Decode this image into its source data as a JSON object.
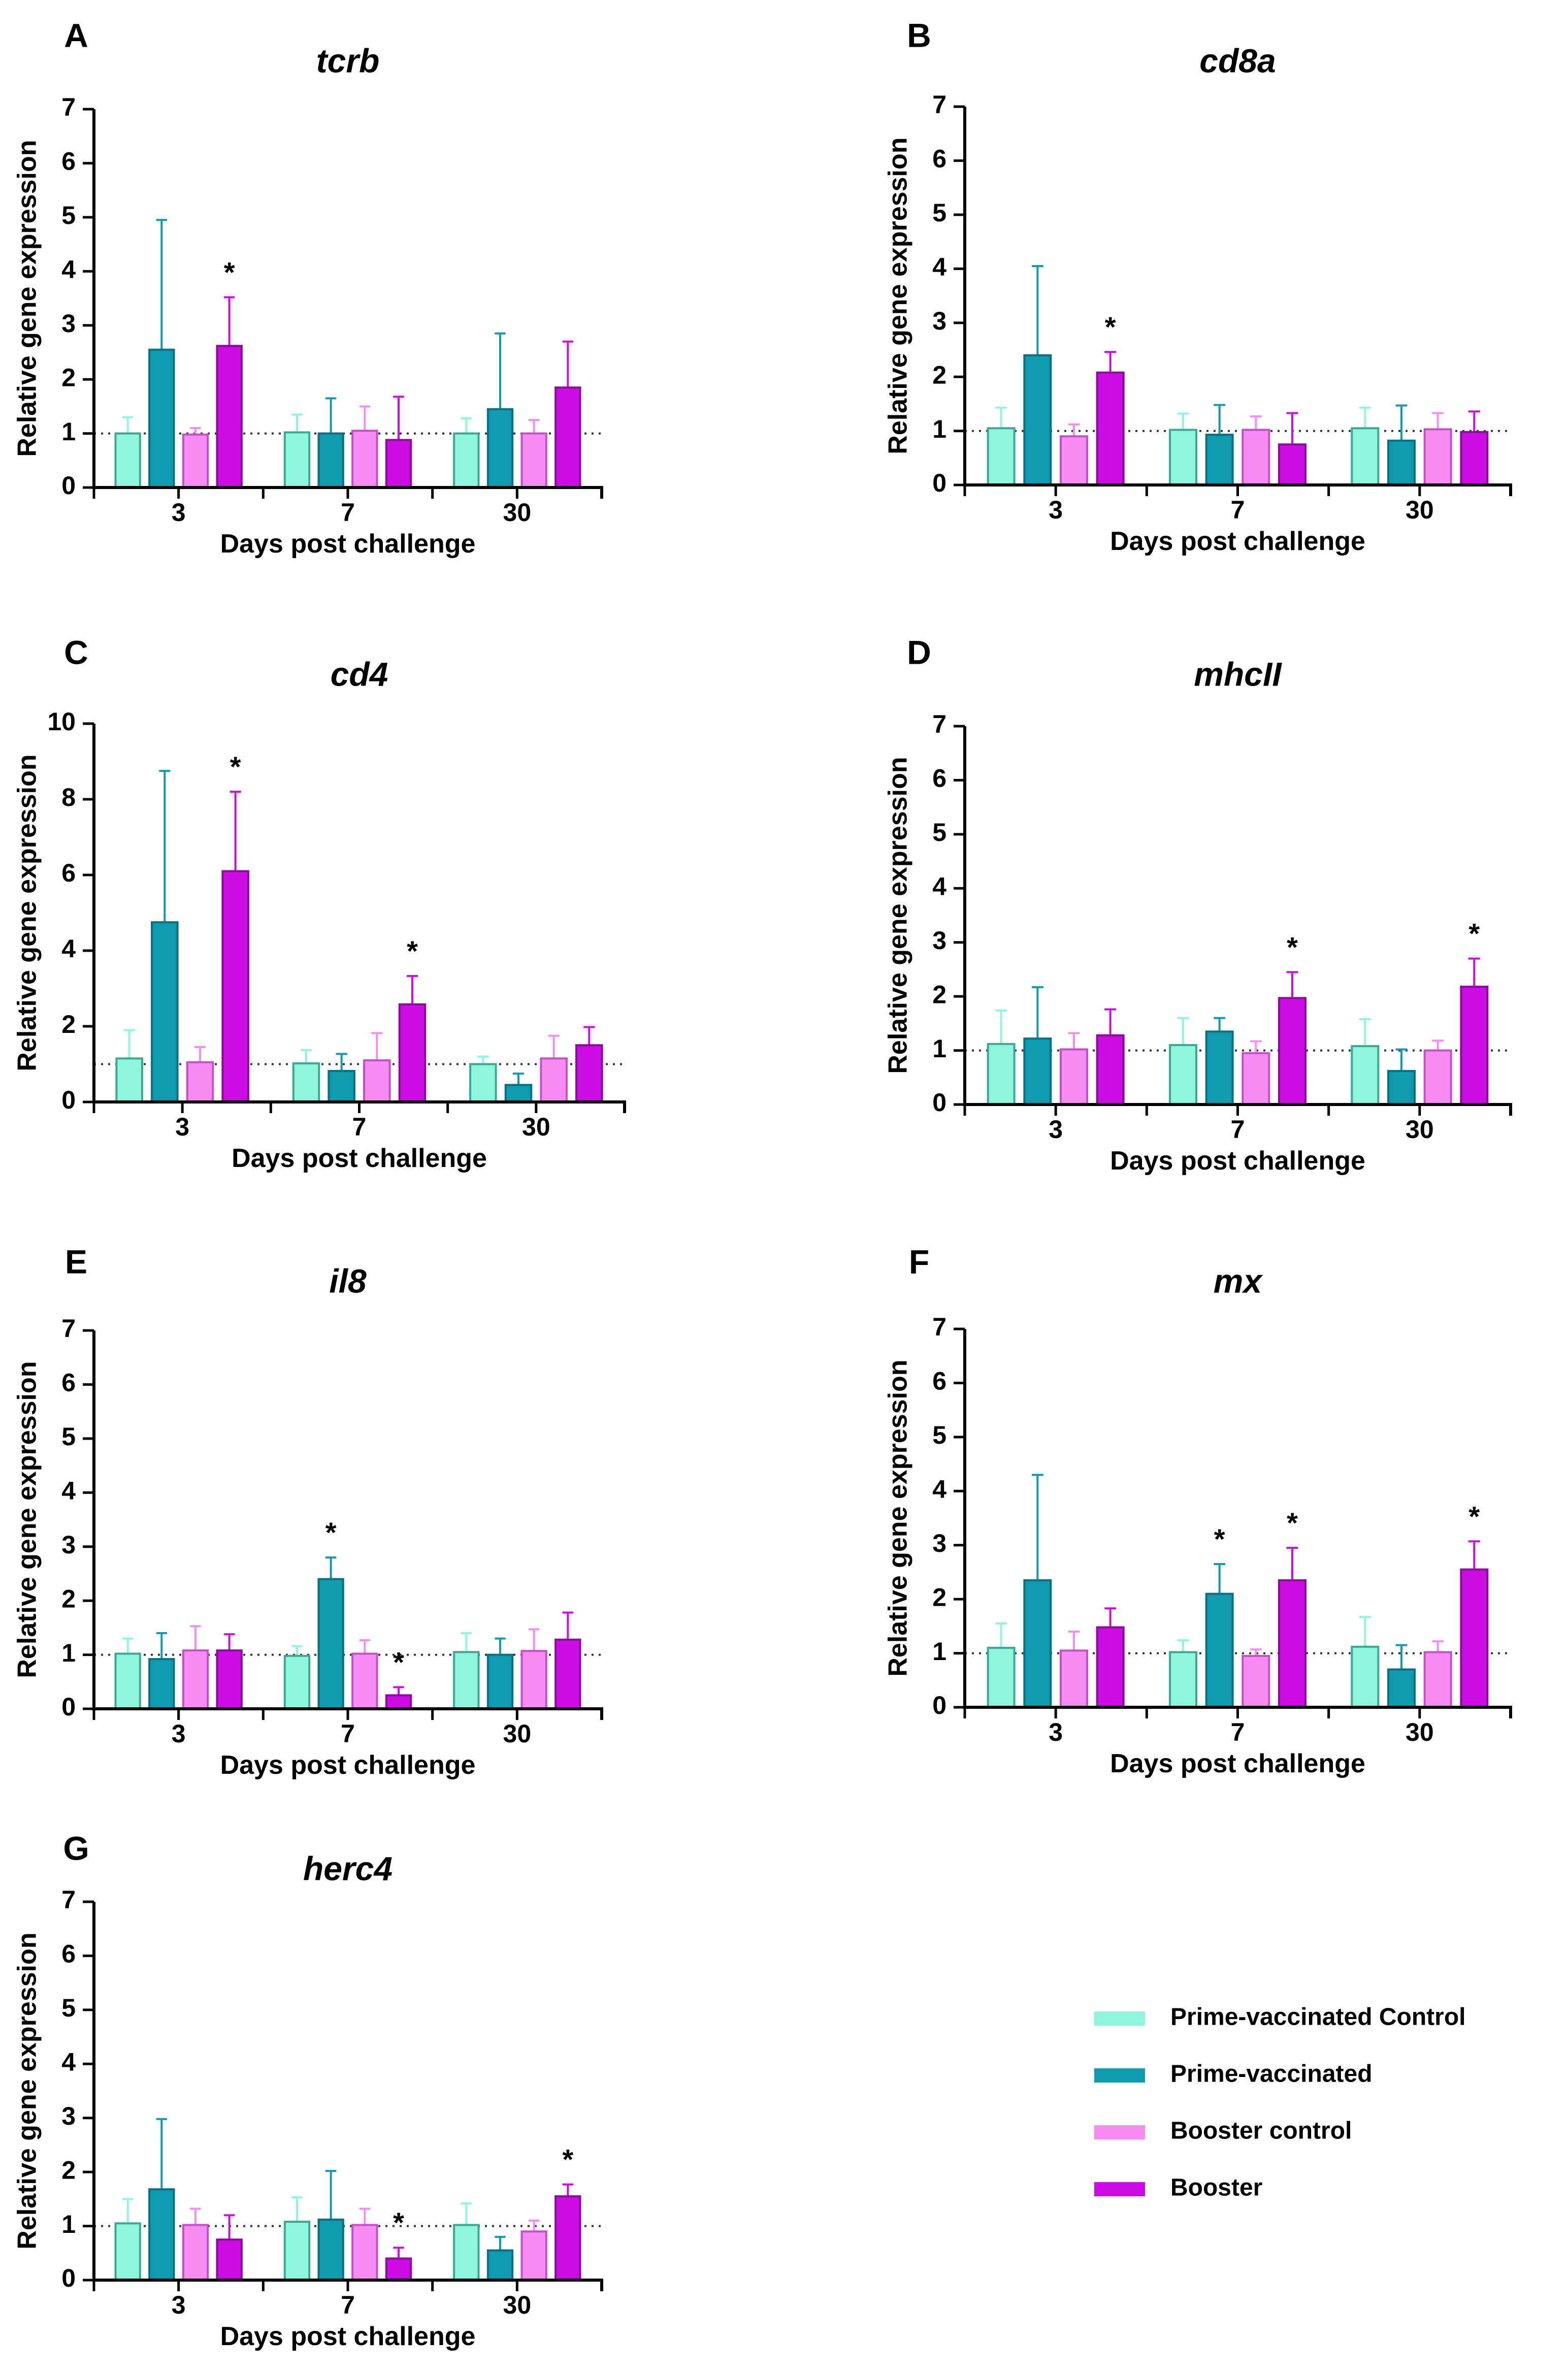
{
  "colors": {
    "prime_control": "#8ef6dc",
    "prime": "#0e9ab0",
    "booster_control": "#f78cf7",
    "booster": "#cb0ce3",
    "prime_control_stroke": "#3aa990",
    "prime_stroke": "#0a6f80",
    "booster_control_stroke": "#c54fc5",
    "booster_stroke": "#8e079f"
  },
  "legend": [
    {
      "key": "prime_control",
      "label": "Prime-vaccinated Control"
    },
    {
      "key": "prime",
      "label": "Prime-vaccinated"
    },
    {
      "key": "booster_control",
      "label": "Booster control"
    },
    {
      "key": "booster",
      "label": "Booster"
    }
  ],
  "chart_data": [
    {
      "panel": "A",
      "title": "tcrb",
      "type": "bar",
      "xlabel": "Days post challenge",
      "ylabel": "Relative gene expression",
      "categories": [
        "3",
        "7",
        "30"
      ],
      "ylim": [
        0,
        7
      ],
      "yticks": [
        0,
        1,
        2,
        3,
        4,
        5,
        6,
        7
      ],
      "reference_line": 1,
      "series": [
        {
          "name": "Prime-vaccinated Control",
          "values": [
            1.0,
            1.02,
            1.0
          ],
          "errors": [
            0.3,
            0.33,
            0.28
          ]
        },
        {
          "name": "Prime-vaccinated",
          "values": [
            2.55,
            1.0,
            1.45
          ],
          "errors": [
            2.4,
            0.65,
            1.4
          ]
        },
        {
          "name": "Booster control",
          "values": [
            0.98,
            1.05,
            1.0
          ],
          "errors": [
            0.12,
            0.45,
            0.25
          ]
        },
        {
          "name": "Booster",
          "values": [
            2.62,
            0.88,
            1.85
          ],
          "errors": [
            0.9,
            0.8,
            0.85
          ]
        }
      ],
      "significance": [
        [
          "3",
          "Booster"
        ]
      ],
      "star": "*"
    },
    {
      "panel": "B",
      "title": "cd8a",
      "type": "bar",
      "xlabel": "Days post challenge",
      "ylabel": "Relative gene expression",
      "categories": [
        "3",
        "7",
        "30"
      ],
      "ylim": [
        0,
        7
      ],
      "yticks": [
        0,
        1,
        2,
        3,
        4,
        5,
        6,
        7
      ],
      "reference_line": 1,
      "series": [
        {
          "name": "Prime-vaccinated Control",
          "values": [
            1.05,
            1.02,
            1.05
          ],
          "errors": [
            0.38,
            0.3,
            0.38
          ]
        },
        {
          "name": "Prime-vaccinated",
          "values": [
            2.4,
            0.93,
            0.82
          ],
          "errors": [
            1.65,
            0.55,
            0.65
          ]
        },
        {
          "name": "Booster control",
          "values": [
            0.9,
            1.02,
            1.03
          ],
          "errors": [
            0.22,
            0.25,
            0.3
          ]
        },
        {
          "name": "Booster",
          "values": [
            2.08,
            0.75,
            0.98
          ],
          "errors": [
            0.38,
            0.58,
            0.38
          ]
        }
      ],
      "significance": [
        [
          "3",
          "Booster"
        ]
      ],
      "star": "*"
    },
    {
      "panel": "C",
      "title": "cd4",
      "type": "bar",
      "xlabel": "Days post challenge",
      "ylabel": "Relative gene expression",
      "categories": [
        "3",
        "7",
        "30"
      ],
      "ylim": [
        0,
        10
      ],
      "yticks": [
        0,
        2,
        4,
        6,
        8,
        10
      ],
      "reference_line": 1,
      "series": [
        {
          "name": "Prime-vaccinated Control",
          "values": [
            1.15,
            1.02,
            1.0
          ],
          "errors": [
            0.75,
            0.35,
            0.2
          ]
        },
        {
          "name": "Prime-vaccinated",
          "values": [
            4.75,
            0.82,
            0.45
          ],
          "errors": [
            4.0,
            0.45,
            0.3
          ]
        },
        {
          "name": "Booster control",
          "values": [
            1.05,
            1.1,
            1.15
          ],
          "errors": [
            0.4,
            0.72,
            0.6
          ]
        },
        {
          "name": "Booster",
          "values": [
            6.1,
            2.58,
            1.5
          ],
          "errors": [
            2.1,
            0.75,
            0.48
          ]
        }
      ],
      "significance": [
        [
          "3",
          "Booster"
        ],
        [
          "7",
          "Booster"
        ]
      ],
      "star": "*"
    },
    {
      "panel": "D",
      "title": "mhcII",
      "type": "bar",
      "xlabel": "Days post challenge",
      "ylabel": "Relative gene expression",
      "categories": [
        "3",
        "7",
        "30"
      ],
      "ylim": [
        0,
        7
      ],
      "yticks": [
        0,
        1,
        2,
        3,
        4,
        5,
        6,
        7
      ],
      "reference_line": 1,
      "series": [
        {
          "name": "Prime-vaccinated Control",
          "values": [
            1.12,
            1.1,
            1.08
          ],
          "errors": [
            0.62,
            0.5,
            0.5
          ]
        },
        {
          "name": "Prime-vaccinated",
          "values": [
            1.22,
            1.35,
            0.62
          ],
          "errors": [
            0.95,
            0.25,
            0.4
          ]
        },
        {
          "name": "Booster control",
          "values": [
            1.02,
            0.95,
            1.0
          ],
          "errors": [
            0.3,
            0.22,
            0.18
          ]
        },
        {
          "name": "Booster",
          "values": [
            1.28,
            1.97,
            2.18
          ],
          "errors": [
            0.48,
            0.48,
            0.52
          ]
        }
      ],
      "significance": [
        [
          "7",
          "Booster"
        ],
        [
          "30",
          "Booster"
        ]
      ],
      "star": "*"
    },
    {
      "panel": "E",
      "title": "il8",
      "type": "bar",
      "xlabel": "Days post challenge",
      "ylabel": "Relative gene expression",
      "categories": [
        "3",
        "7",
        "30"
      ],
      "ylim": [
        0,
        7
      ],
      "yticks": [
        0,
        1,
        2,
        3,
        4,
        5,
        6,
        7
      ],
      "reference_line": 1,
      "series": [
        {
          "name": "Prime-vaccinated Control",
          "values": [
            1.02,
            0.98,
            1.05
          ],
          "errors": [
            0.28,
            0.18,
            0.35
          ]
        },
        {
          "name": "Prime-vaccinated",
          "values": [
            0.92,
            2.4,
            1.0
          ],
          "errors": [
            0.48,
            0.4,
            0.3
          ]
        },
        {
          "name": "Booster control",
          "values": [
            1.08,
            1.02,
            1.07
          ],
          "errors": [
            0.45,
            0.25,
            0.4
          ]
        },
        {
          "name": "Booster",
          "values": [
            1.08,
            0.25,
            1.28
          ],
          "errors": [
            0.3,
            0.15,
            0.5
          ]
        }
      ],
      "significance": [
        [
          "7",
          "Prime-vaccinated"
        ],
        [
          "7",
          "Booster"
        ]
      ],
      "star": "*"
    },
    {
      "panel": "F",
      "title": "mx",
      "type": "bar",
      "xlabel": "Days post challenge",
      "ylabel": "Relative gene expression",
      "categories": [
        "3",
        "7",
        "30"
      ],
      "ylim": [
        0,
        7
      ],
      "yticks": [
        0,
        1,
        2,
        3,
        4,
        5,
        6,
        7
      ],
      "reference_line": 1,
      "series": [
        {
          "name": "Prime-vaccinated Control",
          "values": [
            1.1,
            1.02,
            1.12
          ],
          "errors": [
            0.45,
            0.22,
            0.55
          ]
        },
        {
          "name": "Prime-vaccinated",
          "values": [
            2.35,
            2.1,
            0.7
          ],
          "errors": [
            1.95,
            0.55,
            0.45
          ]
        },
        {
          "name": "Booster control",
          "values": [
            1.05,
            0.95,
            1.02
          ],
          "errors": [
            0.35,
            0.12,
            0.2
          ]
        },
        {
          "name": "Booster",
          "values": [
            1.48,
            2.35,
            2.55
          ],
          "errors": [
            0.35,
            0.6,
            0.52
          ]
        }
      ],
      "significance": [
        [
          "7",
          "Prime-vaccinated"
        ],
        [
          "7",
          "Booster"
        ],
        [
          "30",
          "Booster"
        ]
      ],
      "star": "*"
    },
    {
      "panel": "G",
      "title": "herc4",
      "type": "bar",
      "xlabel": "Days post challenge",
      "ylabel": "Relative gene expression",
      "categories": [
        "3",
        "7",
        "30"
      ],
      "ylim": [
        0,
        7
      ],
      "yticks": [
        0,
        1,
        2,
        3,
        4,
        5,
        6,
        7
      ],
      "reference_line": 1,
      "series": [
        {
          "name": "Prime-vaccinated Control",
          "values": [
            1.05,
            1.08,
            1.02
          ],
          "errors": [
            0.45,
            0.45,
            0.4
          ]
        },
        {
          "name": "Prime-vaccinated",
          "values": [
            1.68,
            1.12,
            0.55
          ],
          "errors": [
            1.3,
            0.9,
            0.25
          ]
        },
        {
          "name": "Booster control",
          "values": [
            1.02,
            1.02,
            0.9
          ],
          "errors": [
            0.3,
            0.3,
            0.2
          ]
        },
        {
          "name": "Booster",
          "values": [
            0.75,
            0.4,
            1.55
          ],
          "errors": [
            0.45,
            0.2,
            0.22
          ]
        }
      ],
      "significance": [
        [
          "7",
          "Booster"
        ],
        [
          "30",
          "Booster"
        ]
      ],
      "star": "*"
    }
  ]
}
